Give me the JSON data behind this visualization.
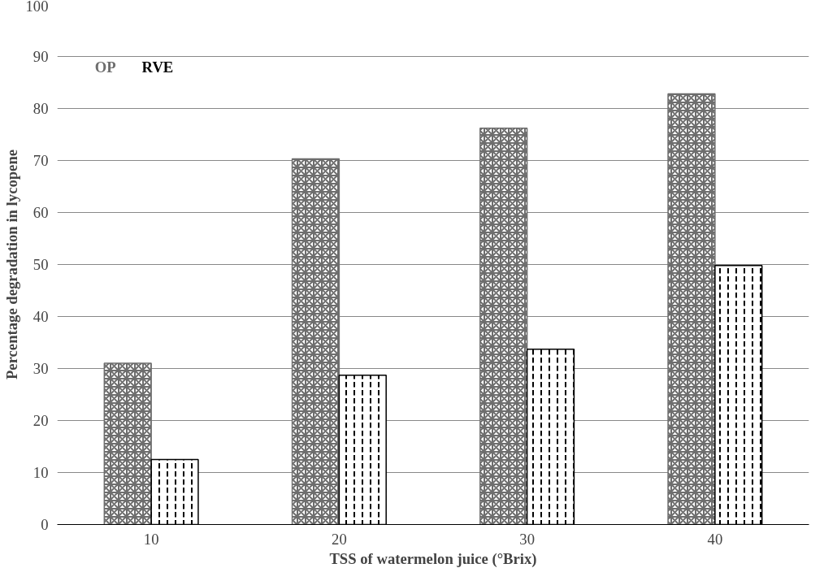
{
  "chart_data": {
    "type": "bar",
    "categories": [
      "10",
      "20",
      "30",
      "40"
    ],
    "xlabel": "TSS of watermelon juice (°Brix)",
    "ylabel": "Percentage degradation in lycopene",
    "series": [
      {
        "name": "OP",
        "color": "#6e6e6e",
        "values": [
          31,
          70.3,
          76.2,
          82.8
        ]
      },
      {
        "name": "RVE",
        "color": "#000000",
        "values": [
          12.5,
          28.7,
          33.7,
          49.8
        ]
      }
    ],
    "ylim": [
      0,
      100
    ],
    "yticks": [
      0,
      10,
      20,
      30,
      40,
      50,
      60,
      70,
      80,
      90,
      100
    ],
    "grid": "y",
    "legend": "top left"
  }
}
